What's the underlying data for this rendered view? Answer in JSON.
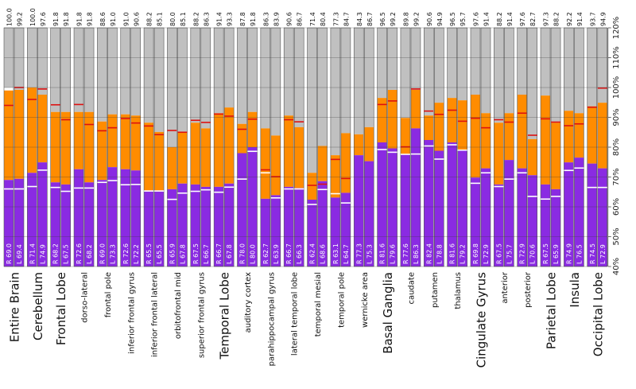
{
  "chart_data": {
    "type": "bar",
    "subtype": "paired stacked bar (R / L)",
    "y_axis": {
      "position": "right",
      "ylim": [
        40,
        120
      ],
      "ticks": [
        "40%",
        "50%",
        "60%",
        "70%",
        "80%",
        "90%",
        "100%",
        "110%",
        "120%"
      ]
    },
    "colors": {
      "purple": "#8a2be2",
      "orange": "#ff8c00",
      "gray": "#c0c0c0",
      "red_marker": "#dd1111",
      "white_marker": "#ffffff"
    },
    "categories": [
      {
        "name": "Entire Brain",
        "major": true,
        "top1": "100.0",
        "top2": "99.2",
        "R_label": "R 69.0",
        "L_label": "L 69.4",
        "R": {
          "purple": 69.0,
          "orange": 99.0,
          "white": 66.0,
          "red": 94.0,
          "total": 100.0
        },
        "L": {
          "purple": 69.4,
          "orange": 99.2,
          "white": 66.0,
          "red": 100.0,
          "total": 99.2
        }
      },
      {
        "name": "Cerebellum",
        "major": true,
        "top1": "100.0",
        "top2": "97.6",
        "R_label": "R 71.4",
        "L_label": "L 74.9",
        "R": {
          "purple": 71.4,
          "orange": 100.0,
          "white": 66.8,
          "red": 96.0,
          "total": 100.0
        },
        "L": {
          "purple": 74.9,
          "orange": 97.6,
          "white": 72.3,
          "red": 99.5,
          "total": 97.6
        }
      },
      {
        "name": "Frontal Lobe",
        "major": true,
        "top1": "91.8",
        "top2": "91.8",
        "R_label": "R 68.2",
        "L_label": "L 67.5",
        "R": {
          "purple": 68.2,
          "orange": 91.8,
          "white": 66.5,
          "red": 94.2,
          "total": 91.8
        },
        "L": {
          "purple": 67.5,
          "orange": 91.8,
          "white": 65.2,
          "red": 89.2,
          "total": 91.8
        }
      },
      {
        "name": "dorso-lateral",
        "major": false,
        "top1": "91.8",
        "top2": "91.8",
        "R_label": "R 72.6",
        "L_label": "L 68.2",
        "R": {
          "purple": 72.6,
          "orange": 91.8,
          "white": 66.3,
          "red": 94.3,
          "total": 91.8
        },
        "L": {
          "purple": 68.2,
          "orange": 91.8,
          "white": 66.3,
          "red": 87.6,
          "total": 91.8
        }
      },
      {
        "name": "frontal pole",
        "major": false,
        "top1": "88.6",
        "top2": "91.0",
        "R_label": "R 69.0",
        "L_label": "L 73.3",
        "R": {
          "purple": 69.0,
          "orange": 88.6,
          "white": 68.2,
          "red": 85.5,
          "total": 88.6
        },
        "L": {
          "purple": 73.3,
          "orange": 91.0,
          "white": 68.8,
          "red": 86.5,
          "total": 91.0
        }
      },
      {
        "name": "inferior frontal gyrus",
        "major": false,
        "top1": "91.0",
        "top2": "90.6",
        "R_label": "R 72.6",
        "L_label": "L 72.2",
        "R": {
          "purple": 72.6,
          "orange": 91.0,
          "white": 67.4,
          "red": 89.6,
          "total": 91.0
        },
        "L": {
          "purple": 72.2,
          "orange": 90.6,
          "white": 67.5,
          "red": 88.1,
          "total": 90.6
        }
      },
      {
        "name": "inferior frontal lateral",
        "major": false,
        "top1": "88.2",
        "top2": "85.1",
        "R_label": "R 65.5",
        "L_label": "L 65.5",
        "R": {
          "purple": 65.5,
          "orange": 88.2,
          "white": 65.3,
          "red": 87.1,
          "total": 88.2
        },
        "L": {
          "purple": 65.5,
          "orange": 85.1,
          "white": 65.3,
          "red": 84.2,
          "total": 85.1
        }
      },
      {
        "name": "orbitofrontal mid",
        "major": false,
        "top1": "80.0",
        "top2": "85.1",
        "R_label": "R 65.9",
        "L_label": "L 67.8",
        "R": {
          "purple": 65.9,
          "orange": 80.0,
          "white": 62.5,
          "red": 85.6,
          "total": 80.0
        },
        "L": {
          "purple": 67.8,
          "orange": 85.1,
          "white": 64.6,
          "red": 85.0,
          "total": 85.1
        }
      },
      {
        "name": "superior frontal gyrus",
        "major": false,
        "top1": "88.2",
        "top2": "86.3",
        "R_label": "R 67.5",
        "L_label": "L 66.7",
        "R": {
          "purple": 67.5,
          "orange": 88.2,
          "white": 65.2,
          "red": 89.0,
          "total": 88.2
        },
        "L": {
          "purple": 66.7,
          "orange": 86.3,
          "white": 65.7,
          "red": 88.3,
          "total": 86.3
        }
      },
      {
        "name": "Temporal Lobe",
        "major": true,
        "top1": "91.4",
        "top2": "93.3",
        "R_label": "R 66.7",
        "L_label": "L 67.8",
        "R": {
          "purple": 66.7,
          "orange": 91.4,
          "white": 64.9,
          "red": 91.1,
          "total": 91.4
        },
        "L": {
          "purple": 67.8,
          "orange": 93.3,
          "white": 66.6,
          "red": 90.4,
          "total": 93.3
        }
      },
      {
        "name": "auditory cortex",
        "major": false,
        "top1": "87.8",
        "top2": "91.8",
        "R_label": "R 78.0",
        "L_label": "L 80.0",
        "R": {
          "purple": 78.0,
          "orange": 87.8,
          "white": 69.3,
          "red": 86.0,
          "total": 87.8
        },
        "L": {
          "purple": 80.0,
          "orange": 91.8,
          "white": 78.6,
          "red": 89.4,
          "total": 91.8
        }
      },
      {
        "name": "parahippocampal gyrus",
        "major": false,
        "top1": "86.3",
        "top2": "83.9",
        "R_label": "R 62.7",
        "L_label": "L 63.9",
        "R": {
          "purple": 62.7,
          "orange": 86.3,
          "white": 71.4,
          "red": 72.4,
          "total": 86.3
        },
        "L": {
          "purple": 63.9,
          "orange": 83.9,
          "white": 63.0,
          "red": 70.1,
          "total": 83.9
        }
      },
      {
        "name": "lateral temporal lobe",
        "major": false,
        "top1": "90.6",
        "top2": "86.7",
        "R_label": "R 66.7",
        "L_label": "L 66.3",
        "R": {
          "purple": 66.7,
          "orange": 90.6,
          "white": 66.0,
          "red": 89.2,
          "total": 90.6
        },
        "L": {
          "purple": 66.3,
          "orange": 86.7,
          "white": 66.0,
          "red": 88.5,
          "total": 86.7
        }
      },
      {
        "name": "temporal mesial",
        "major": false,
        "top1": "71.4",
        "top2": "80.4",
        "R_label": "R 62.4",
        "L_label": "L 68.6",
        "R": {
          "purple": 62.4,
          "orange": 71.4,
          "white": 60.8,
          "red": 67.2,
          "total": 71.4
        },
        "L": {
          "purple": 68.6,
          "orange": 80.4,
          "white": 65.8,
          "red": 67.6,
          "total": 80.4
        }
      },
      {
        "name": "temporal pole",
        "major": false,
        "top1": "77.3",
        "top2": "84.7",
        "R_label": "R 63.1",
        "L_label": "L 64.7",
        "R": {
          "purple": 63.1,
          "orange": 77.3,
          "white": 64.4,
          "red": 75.9,
          "total": 77.3
        },
        "L": {
          "purple": 64.7,
          "orange": 84.7,
          "white": 61.3,
          "red": 69.5,
          "total": 84.7
        }
      },
      {
        "name": "wernicke area",
        "major": false,
        "top1": "84.3",
        "top2": "86.7",
        "R_label": "R 77.3",
        "L_label": "L 75.3",
        "R": {
          "purple": 77.3,
          "orange": 84.3,
          "white": null,
          "red": null,
          "total": 84.3
        },
        "L": {
          "purple": 75.3,
          "orange": 86.7,
          "white": null,
          "red": null,
          "total": 86.7
        }
      },
      {
        "name": "Basal Ganglia",
        "major": true,
        "top1": "96.5",
        "top2": "99.2",
        "R_label": "R 81.6",
        "L_label": "L 79.6",
        "R": {
          "purple": 81.6,
          "orange": 96.5,
          "white": 79.2,
          "red": 94.3,
          "total": 96.5
        },
        "L": {
          "purple": 79.6,
          "orange": 99.2,
          "white": 78.3,
          "red": 95.5,
          "total": 99.2
        }
      },
      {
        "name": "caudate",
        "major": false,
        "top1": "89.8",
        "top2": "99.2",
        "R_label": "R 77.6",
        "L_label": "L 86.3",
        "R": {
          "purple": 77.6,
          "orange": 89.8,
          "white": 77.6,
          "red": 80.1,
          "total": 89.8
        },
        "L": {
          "purple": 86.3,
          "orange": 99.2,
          "white": 77.7,
          "red": 99.5,
          "total": 99.2
        }
      },
      {
        "name": "putamen",
        "major": false,
        "top1": "90.6",
        "top2": "94.9",
        "R_label": "R 82.4",
        "L_label": "L 78.8",
        "R": {
          "purple": 82.4,
          "orange": 90.6,
          "white": 80.4,
          "red": 92.1,
          "total": 90.6
        },
        "L": {
          "purple": 78.8,
          "orange": 94.9,
          "white": 76.0,
          "red": 91.0,
          "total": 94.9
        }
      },
      {
        "name": "thalamus",
        "major": false,
        "top1": "96.5",
        "top2": "95.7",
        "R_label": "R 81.6",
        "L_label": "L 79.2",
        "R": {
          "purple": 81.6,
          "orange": 96.5,
          "white": 80.8,
          "red": 92.4,
          "total": 96.5
        },
        "L": {
          "purple": 79.2,
          "orange": 95.7,
          "white": 79.0,
          "red": 88.7,
          "total": 95.7
        }
      },
      {
        "name": "Cingulate Gyrus",
        "major": true,
        "top1": "97.6",
        "top2": "91.4",
        "R_label": "R 69.8",
        "L_label": "L 72.9",
        "R": {
          "purple": 69.8,
          "orange": 97.6,
          "white": 67.9,
          "red": 89.7,
          "total": 97.6
        },
        "L": {
          "purple": 72.9,
          "orange": 91.4,
          "white": 71.4,
          "red": 86.5,
          "total": 91.4
        }
      },
      {
        "name": "anterior",
        "major": false,
        "top1": "88.2",
        "top2": "91.4",
        "R_label": "R 67.5",
        "L_label": "L 75.7",
        "R": {
          "purple": 67.5,
          "orange": 88.2,
          "white": 66.8,
          "red": 89.2,
          "total": 88.2
        },
        "L": {
          "purple": 75.7,
          "orange": 91.4,
          "white": 69.3,
          "red": 88.4,
          "total": 91.4
        }
      },
      {
        "name": "posterior",
        "major": false,
        "top1": "97.6",
        "top2": "82.7",
        "R_label": "R 72.9",
        "L_label": "L 70.6",
        "R": {
          "purple": 72.9,
          "orange": 97.6,
          "white": 71.4,
          "red": 91.4,
          "total": 97.6
        },
        "L": {
          "purple": 70.6,
          "orange": 82.7,
          "white": 63.5,
          "red": 84.0,
          "total": 82.7
        }
      },
      {
        "name": "Parietal Lobe",
        "major": true,
        "top1": "97.3",
        "top2": "88.2",
        "R_label": "R 67.5",
        "L_label": "L 65.9",
        "R": {
          "purple": 67.5,
          "orange": 97.3,
          "white": 62.6,
          "red": 89.5,
          "total": 97.3
        },
        "L": {
          "purple": 65.9,
          "orange": 88.2,
          "white": 63.5,
          "red": 88.4,
          "total": 88.2
        }
      },
      {
        "name": "Insula",
        "major": true,
        "top1": "92.2",
        "top2": "91.4",
        "R_label": "R 74.9",
        "L_label": "L 76.5",
        "R": {
          "purple": 74.9,
          "orange": 92.2,
          "white": 72.2,
          "red": 87.2,
          "total": 92.2
        },
        "L": {
          "purple": 76.5,
          "orange": 91.4,
          "white": 73.0,
          "red": 87.8,
          "total": 91.4
        }
      },
      {
        "name": "Occipital Lobe",
        "major": true,
        "top1": "93.7",
        "top2": "94.9",
        "R_label": "R 74.5",
        "L_label": "L 72.9",
        "R": {
          "purple": 74.5,
          "orange": 93.7,
          "white": 66.5,
          "red": 93.4,
          "total": 93.7
        },
        "L": {
          "purple": 72.9,
          "orange": 94.9,
          "white": 66.5,
          "red": 99.8,
          "total": 94.9
        }
      }
    ]
  }
}
